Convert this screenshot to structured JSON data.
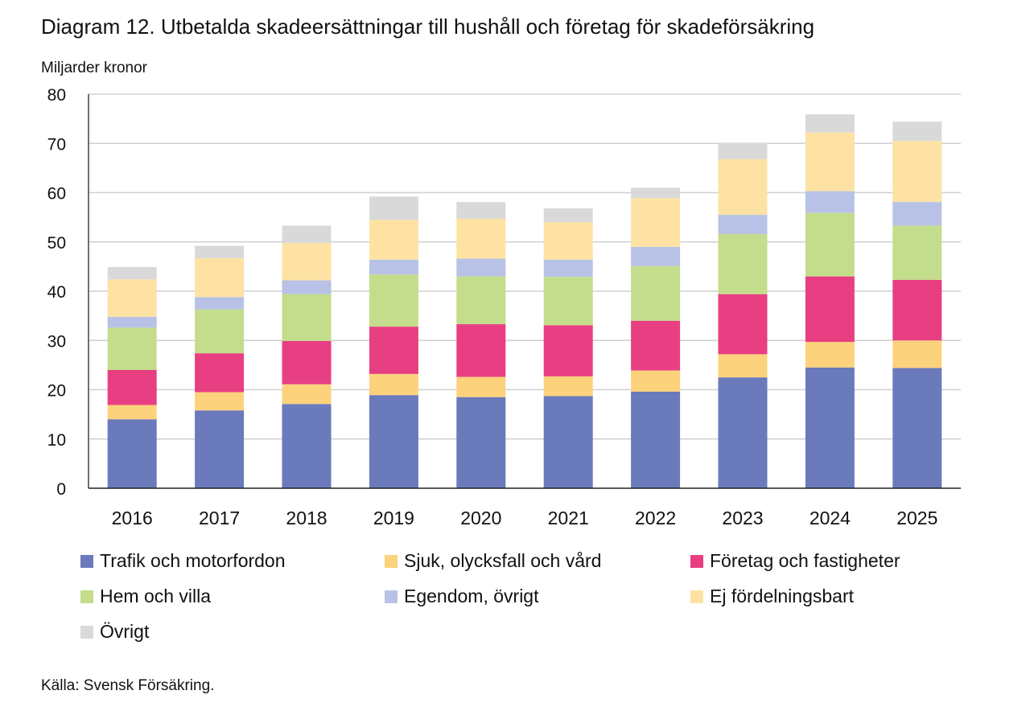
{
  "chart_data": {
    "type": "bar",
    "stacked": true,
    "title": "Diagram 12. Utbetalda skadeersättningar till hushåll och företag för skadeförsäkring",
    "ylabel": "Miljarder kronor",
    "xlabel": "",
    "ylim": [
      0,
      80
    ],
    "yticks": [
      0,
      10,
      20,
      30,
      40,
      50,
      60,
      70,
      80
    ],
    "grid": true,
    "legend_position": "bottom",
    "categories": [
      "2016",
      "2017",
      "2018",
      "2019",
      "2020",
      "2021",
      "2022",
      "2023",
      "2024",
      "2025"
    ],
    "series": [
      {
        "name": "Trafik och motorfordon",
        "color": "#6a7abb",
        "values": [
          14.0,
          15.8,
          17.1,
          18.9,
          18.5,
          18.7,
          19.6,
          22.5,
          24.5,
          24.4
        ]
      },
      {
        "name": "Sjuk, olycksfall och vård",
        "color": "#fdd27c",
        "values": [
          2.9,
          3.7,
          4.0,
          4.3,
          4.1,
          4.0,
          4.3,
          4.7,
          5.2,
          5.6
        ]
      },
      {
        "name": "Företag och fastigheter",
        "color": "#e83f83",
        "values": [
          7.1,
          7.9,
          8.8,
          9.6,
          10.7,
          10.4,
          10.1,
          12.2,
          13.3,
          12.3
        ]
      },
      {
        "name": "Hem och villa",
        "color": "#c4dd8c",
        "values": [
          8.6,
          8.9,
          9.5,
          10.6,
          9.7,
          9.8,
          11.1,
          12.2,
          12.9,
          11.0
        ]
      },
      {
        "name": "Egendom, övrigt",
        "color": "#b8c2e6",
        "values": [
          2.2,
          2.5,
          2.8,
          3.0,
          3.6,
          3.5,
          3.9,
          3.9,
          4.4,
          4.8
        ]
      },
      {
        "name": "Ej fördelningsbart",
        "color": "#fde2a4",
        "values": [
          7.6,
          7.9,
          7.6,
          8.1,
          8.1,
          7.6,
          9.9,
          11.3,
          11.9,
          12.4
        ]
      },
      {
        "name": "Övrigt",
        "color": "#d9d9d9",
        "values": [
          2.5,
          2.5,
          3.5,
          4.7,
          3.4,
          2.8,
          2.1,
          3.2,
          3.7,
          3.9
        ]
      }
    ]
  },
  "footer": {
    "source": "Källa: Svensk Försäkring."
  }
}
